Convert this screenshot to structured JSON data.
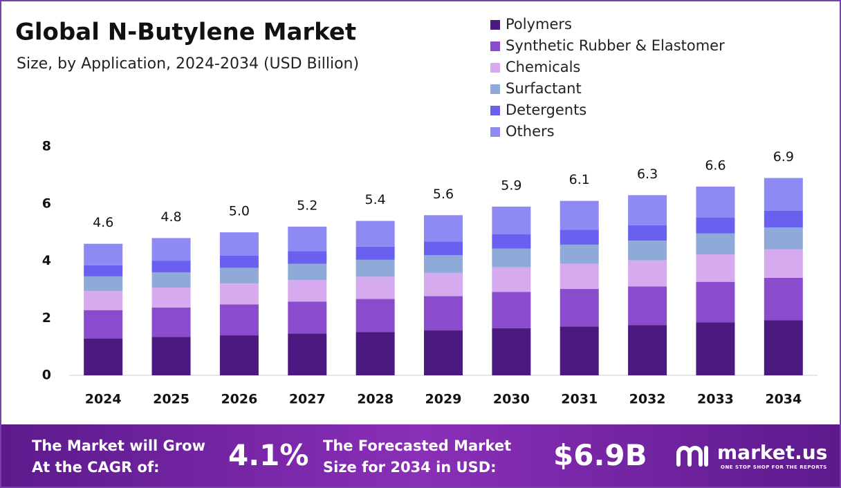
{
  "chart_data": {
    "type": "stacked-bar",
    "title": "Global N-Butylene Market",
    "subtitle": "Size, by Application, 2024-2034 (USD Billion)",
    "categories": [
      "2024",
      "2025",
      "2026",
      "2027",
      "2028",
      "2029",
      "2030",
      "2031",
      "2032",
      "2033",
      "2034"
    ],
    "series": [
      {
        "name": "Polymers",
        "color": "#4b1a80",
        "values": [
          1.29,
          1.34,
          1.4,
          1.46,
          1.51,
          1.57,
          1.65,
          1.71,
          1.76,
          1.85,
          1.93
        ]
      },
      {
        "name": "Synthetic Rubber & Elastomer",
        "color": "#8a4ccc",
        "values": [
          0.99,
          1.03,
          1.08,
          1.12,
          1.16,
          1.2,
          1.27,
          1.31,
          1.35,
          1.42,
          1.48
        ]
      },
      {
        "name": "Chemicals",
        "color": "#d6aaee",
        "values": [
          0.67,
          0.7,
          0.73,
          0.75,
          0.78,
          0.81,
          0.86,
          0.88,
          0.91,
          0.96,
          1.0
        ]
      },
      {
        "name": "Surfactant",
        "color": "#8faad8",
        "values": [
          0.51,
          0.53,
          0.55,
          0.57,
          0.59,
          0.62,
          0.65,
          0.67,
          0.69,
          0.73,
          0.76
        ]
      },
      {
        "name": "Detergents",
        "color": "#6a60f0",
        "values": [
          0.39,
          0.41,
          0.43,
          0.44,
          0.46,
          0.48,
          0.5,
          0.52,
          0.54,
          0.56,
          0.59
        ]
      },
      {
        "name": "Others",
        "color": "#8d8af4",
        "values": [
          0.75,
          0.79,
          0.81,
          0.86,
          0.9,
          0.92,
          0.97,
          1.01,
          1.05,
          1.08,
          1.14
        ]
      }
    ],
    "totals": [
      4.6,
      4.8,
      5.0,
      5.2,
      5.4,
      5.6,
      5.9,
      6.1,
      6.3,
      6.6,
      6.9
    ],
    "total_labels": [
      "4.6",
      "4.8",
      "5.0",
      "5.2",
      "5.4",
      "5.6",
      "5.9",
      "6.1",
      "6.3",
      "6.6",
      "6.9"
    ],
    "ylim": [
      0,
      8
    ],
    "yticks": [
      0,
      2,
      4,
      6,
      8
    ],
    "grid": false
  },
  "footer": {
    "cagr_text_1": "The Market will Grow",
    "cagr_text_2": "At the CAGR of:",
    "cagr_value": "4.1%",
    "forecast_text_1": "The Forecasted Market",
    "forecast_text_2": "Size for 2034 in USD:",
    "forecast_value": "$6.9B",
    "brand": "market.us",
    "tagline": "ONE STOP SHOP FOR THE REPORTS"
  }
}
